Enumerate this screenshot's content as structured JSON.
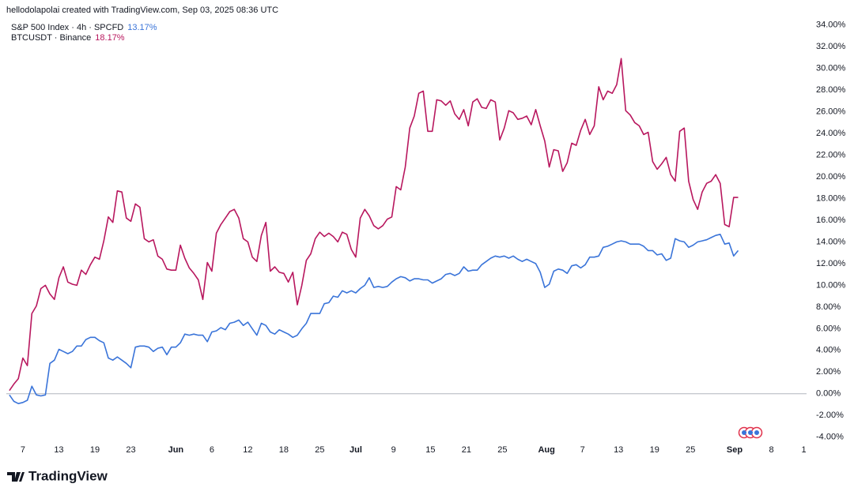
{
  "header": {
    "attribution": "hellodolapolai created with TradingView.com, Sep 03, 2025 08:36 UTC"
  },
  "footer": {
    "brand": "TradingView"
  },
  "chart_data": {
    "type": "line",
    "x": [
      -1.5,
      -1,
      -0.5,
      0,
      0.5,
      1,
      1.5,
      2,
      2.5,
      3,
      3.5,
      4,
      4.5,
      5,
      5.5,
      6,
      6.5,
      7,
      7.5,
      8,
      8.5,
      9,
      9.5,
      10,
      10.5,
      11,
      11.5,
      12,
      12.5,
      13,
      13.5,
      14,
      14.5,
      15,
      15.5,
      16,
      16.5,
      17,
      17.5,
      18,
      18.5,
      19,
      19.5,
      20,
      20.5,
      21,
      21.5,
      22,
      22.5,
      23,
      23.5,
      24,
      24.5,
      25,
      25.5,
      26,
      26.5,
      27,
      27.5,
      28,
      28.5,
      29,
      29.5,
      30,
      30.5,
      31,
      31.5,
      32,
      32.5,
      33,
      33.5,
      34,
      34.5,
      35,
      35.5,
      36,
      36.5,
      37,
      37.5,
      38,
      38.5,
      39,
      39.5,
      40,
      40.5,
      41,
      41.5,
      42,
      42.5,
      43,
      43.5,
      44,
      44.5,
      45,
      45.5,
      46,
      46.5,
      47,
      47.5,
      48,
      48.5,
      49,
      49.5,
      50,
      50.5,
      51,
      51.5,
      52,
      52.5,
      53,
      53.5,
      54,
      54.5,
      55,
      55.5,
      56,
      56.5,
      57,
      57.5,
      58,
      58.5,
      59,
      59.5,
      60,
      60.5,
      61,
      61.5,
      62,
      62.5,
      63,
      63.5,
      64,
      64.5,
      65,
      65.5,
      66,
      66.5,
      67,
      67.5,
      68,
      68.5,
      69,
      69.5,
      70,
      70.5,
      71,
      71.5,
      72,
      72.5,
      73,
      73.5,
      74,
      74.5,
      75,
      75.5,
      76,
      76.5,
      77,
      77.5,
      78,
      78.5,
      79,
      79.5
    ],
    "series": [
      {
        "name": "S&P 500 Index · 4h · SPCFD",
        "legend_value": "13.17%",
        "color": "#3a74d9",
        "values": [
          -0.1,
          -0.7,
          -0.9,
          -0.8,
          -0.6,
          0.7,
          -0.1,
          -0.2,
          -0.1,
          2.8,
          3.1,
          4.1,
          3.9,
          3.7,
          3.9,
          4.4,
          4.4,
          5.0,
          5.2,
          5.2,
          4.9,
          4.7,
          3.3,
          3.1,
          3.4,
          3.1,
          2.8,
          2.4,
          4.3,
          4.4,
          4.4,
          4.3,
          3.9,
          4.2,
          4.3,
          3.6,
          4.3,
          4.3,
          4.7,
          5.5,
          5.4,
          5.5,
          5.4,
          5.4,
          4.8,
          5.7,
          5.8,
          6.1,
          5.9,
          6.5,
          6.6,
          6.8,
          6.3,
          6.6,
          6.0,
          5.4,
          6.5,
          6.3,
          5.7,
          5.5,
          5.9,
          5.7,
          5.5,
          5.2,
          5.4,
          6.0,
          6.5,
          7.4,
          7.4,
          7.4,
          8.3,
          8.4,
          9.0,
          8.9,
          9.5,
          9.3,
          9.5,
          9.3,
          9.7,
          10.0,
          10.7,
          9.8,
          9.9,
          9.8,
          9.9,
          10.3,
          10.6,
          10.8,
          10.7,
          10.4,
          10.6,
          10.6,
          10.5,
          10.5,
          10.2,
          10.4,
          10.6,
          11.0,
          11.1,
          10.9,
          11.1,
          11.7,
          11.3,
          11.4,
          11.4,
          11.9,
          12.2,
          12.5,
          12.7,
          12.6,
          12.7,
          12.5,
          12.7,
          12.4,
          12.2,
          12.4,
          12.2,
          12.0,
          11.2,
          9.8,
          10.1,
          11.3,
          11.5,
          11.4,
          11.1,
          11.8,
          11.9,
          11.6,
          11.9,
          12.6,
          12.6,
          12.7,
          13.5,
          13.6,
          13.8,
          14.0,
          14.1,
          14.0,
          13.8,
          13.8,
          13.8,
          13.6,
          13.2,
          13.2,
          12.8,
          12.9,
          12.3,
          12.5,
          14.3,
          14.1,
          14.0,
          13.5,
          13.7,
          14.0,
          14.1,
          14.2,
          14.4,
          14.6,
          14.7,
          13.8,
          13.9,
          12.7,
          13.2
        ]
      },
      {
        "name": "BTCUSDT · Binance",
        "legend_value": "18.17%",
        "color": "#b8175e",
        "values": [
          0.3,
          0.9,
          1.4,
          3.3,
          2.6,
          7.4,
          8.1,
          9.7,
          10.0,
          9.2,
          8.7,
          10.7,
          11.7,
          10.3,
          10.1,
          10.0,
          11.4,
          11.0,
          11.9,
          12.6,
          12.4,
          14.1,
          16.3,
          15.8,
          18.7,
          18.6,
          16.2,
          15.9,
          17.5,
          17.2,
          14.3,
          14.0,
          14.2,
          12.7,
          12.4,
          11.5,
          11.4,
          11.4,
          13.7,
          12.5,
          11.6,
          11.1,
          10.5,
          8.7,
          12.1,
          11.3,
          14.8,
          15.6,
          16.2,
          16.8,
          17.0,
          16.2,
          14.3,
          14.0,
          12.6,
          12.2,
          14.6,
          15.8,
          11.3,
          11.7,
          11.2,
          11.1,
          10.3,
          11.2,
          8.2,
          10.0,
          12.3,
          12.9,
          14.3,
          14.9,
          14.5,
          14.8,
          14.5,
          14.0,
          14.9,
          14.7,
          13.3,
          12.6,
          16.2,
          17.0,
          16.4,
          15.5,
          15.2,
          15.5,
          16.1,
          16.3,
          19.1,
          18.8,
          20.9,
          24.5,
          25.6,
          27.7,
          27.9,
          24.2,
          24.2,
          27.1,
          27.0,
          26.6,
          27.0,
          25.8,
          25.3,
          26.2,
          24.7,
          26.9,
          27.2,
          26.4,
          26.3,
          27.1,
          26.9,
          23.4,
          24.5,
          26.1,
          25.9,
          25.3,
          25.4,
          25.6,
          24.8,
          26.2,
          24.7,
          23.3,
          20.9,
          22.5,
          22.4,
          20.5,
          21.3,
          23.1,
          22.9,
          24.3,
          25.3,
          23.9,
          24.7,
          28.3,
          27.1,
          27.9,
          27.7,
          28.5,
          30.9,
          26.1,
          25.7,
          25.0,
          24.7,
          23.9,
          24.1,
          21.4,
          20.7,
          21.2,
          21.8,
          20.2,
          19.6,
          24.2,
          24.5,
          19.6,
          17.9,
          17.0,
          18.6,
          19.4,
          19.6,
          20.2,
          19.4,
          15.6,
          15.4,
          18.1,
          18.1
        ]
      }
    ],
    "xlim": [
      -1.84,
      87.1
    ],
    "xticks": [
      {
        "value": 0,
        "label": "7"
      },
      {
        "value": 4,
        "label": "13"
      },
      {
        "value": 8,
        "label": "19"
      },
      {
        "value": 12,
        "label": "23"
      },
      {
        "value": 17,
        "label": "Jun"
      },
      {
        "value": 21,
        "label": "6"
      },
      {
        "value": 25,
        "label": "12"
      },
      {
        "value": 29,
        "label": "18"
      },
      {
        "value": 33,
        "label": "25"
      },
      {
        "value": 37,
        "label": "Jul"
      },
      {
        "value": 41.2,
        "label": "9"
      },
      {
        "value": 45.3,
        "label": "15"
      },
      {
        "value": 49.3,
        "label": "21"
      },
      {
        "value": 53.3,
        "label": "25"
      },
      {
        "value": 58.2,
        "label": "Aug"
      },
      {
        "value": 62.2,
        "label": "7"
      },
      {
        "value": 66.2,
        "label": "13"
      },
      {
        "value": 70.2,
        "label": "19"
      },
      {
        "value": 74.2,
        "label": "25"
      },
      {
        "value": 79.1,
        "label": "Sep"
      },
      {
        "value": 83.2,
        "label": "8"
      },
      {
        "value": 86.8,
        "label": "1"
      }
    ],
    "ylim": [
      -4.6,
      34.7
    ],
    "yticks": [
      {
        "value": -4,
        "label": "-4.00%"
      },
      {
        "value": -2,
        "label": "-2.00%"
      },
      {
        "value": 0,
        "label": "0.00%"
      },
      {
        "value": 2,
        "label": "2.00%"
      },
      {
        "value": 4,
        "label": "4.00%"
      },
      {
        "value": 6,
        "label": "6.00%"
      },
      {
        "value": 8,
        "label": "8.00%"
      },
      {
        "value": 10,
        "label": "10.00%"
      },
      {
        "value": 12,
        "label": "12.00%"
      },
      {
        "value": 14,
        "label": "14.00%"
      },
      {
        "value": 16,
        "label": "16.00%"
      },
      {
        "value": 18,
        "label": "18.00%"
      },
      {
        "value": 20,
        "label": "20.00%"
      },
      {
        "value": 22,
        "label": "22.00%"
      },
      {
        "value": 24,
        "label": "24.00%"
      },
      {
        "value": 26,
        "label": "26.00%"
      },
      {
        "value": 28,
        "label": "28.00%"
      },
      {
        "value": 30,
        "label": "30.00%"
      },
      {
        "value": 32,
        "label": "32.00%"
      },
      {
        "value": 34,
        "label": "34.00%"
      }
    ],
    "baseline": 0,
    "grid": false
  }
}
